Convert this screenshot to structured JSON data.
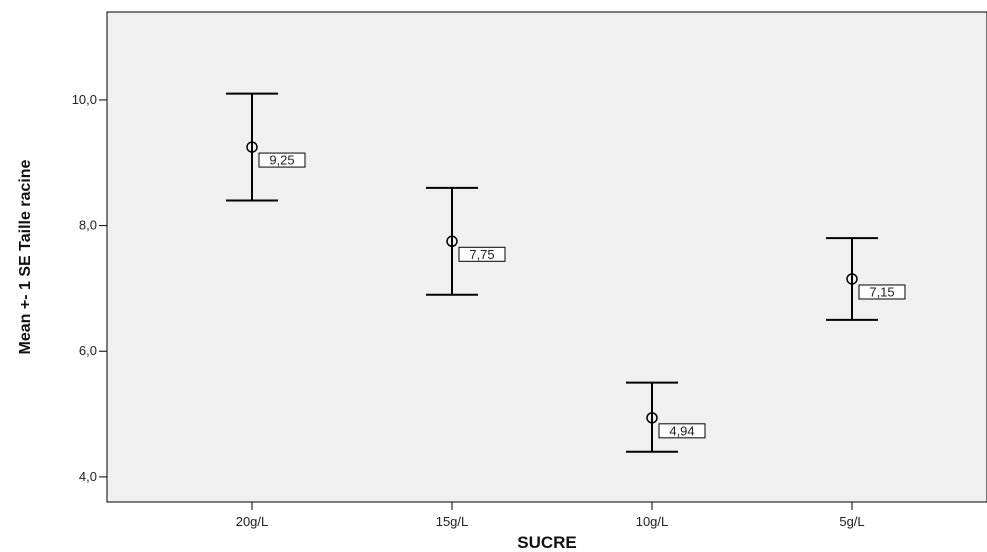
{
  "chart_data": {
    "type": "scatter",
    "xlabel": "SUCRE",
    "ylabel": "Mean +- 1 SE Taille racine",
    "ylim": [
      3.6,
      11.4
    ],
    "yticks": [
      4.0,
      6.0,
      8.0,
      10.0
    ],
    "ytick_labels": [
      "4,0",
      "6,0",
      "8,0",
      "10,0"
    ],
    "categories": [
      "20g/L",
      "15g/L",
      "10g/L",
      "5g/L"
    ],
    "means": [
      9.25,
      7.75,
      4.94,
      7.15
    ],
    "mean_labels": [
      "9,25",
      "7,75",
      "4,94",
      "7,15"
    ],
    "lower": [
      8.4,
      6.9,
      4.4,
      6.5
    ],
    "upper": [
      10.1,
      8.6,
      5.5,
      7.8
    ],
    "grid": false,
    "plot_background": "#f0f0f0",
    "line_color": "#000000"
  }
}
